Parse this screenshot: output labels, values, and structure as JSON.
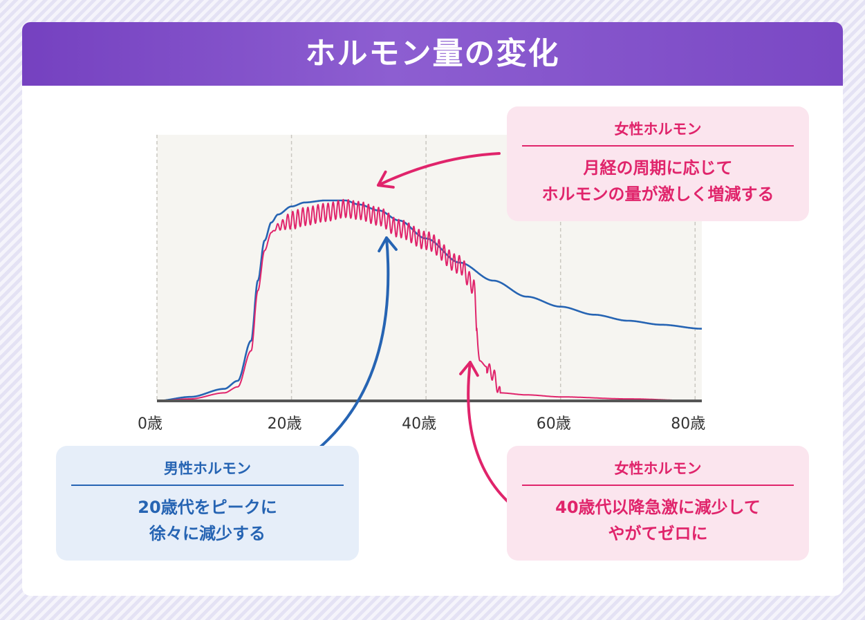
{
  "title": "ホルモン量の変化",
  "chart_data": {
    "type": "line",
    "title": "ホルモン量の変化",
    "xlabel": "",
    "ylabel": "",
    "xlim": [
      0,
      81
    ],
    "ylim": [
      0,
      1
    ],
    "x_ticks": [
      0,
      20,
      40,
      60,
      80
    ],
    "x_tick_labels": [
      "0歳",
      "20歳",
      "40歳",
      "60歳",
      "80歳"
    ],
    "grid": "vertical-dashed",
    "series": [
      {
        "name": "男性ホルモン",
        "color": "#2664b3",
        "x": [
          0,
          5,
          10,
          12,
          14,
          15,
          16,
          17,
          18,
          20,
          22,
          25,
          28,
          30,
          33,
          36,
          40,
          45,
          50,
          55,
          60,
          65,
          70,
          75,
          81
        ],
        "y": [
          0.0,
          0.02,
          0.06,
          0.1,
          0.3,
          0.6,
          0.8,
          0.89,
          0.93,
          0.97,
          0.99,
          1.0,
          1.0,
          0.98,
          0.95,
          0.9,
          0.81,
          0.69,
          0.6,
          0.52,
          0.47,
          0.43,
          0.4,
          0.38,
          0.36
        ]
      },
      {
        "name": "女性ホルモン",
        "color": "#e0246b",
        "oscillation": "monthly-cycle",
        "x": [
          0,
          5,
          10,
          12,
          14,
          15,
          16,
          17,
          18,
          20,
          22,
          25,
          28,
          30,
          33,
          36,
          40,
          45,
          47,
          48,
          49,
          50,
          51,
          55,
          60,
          70,
          81
        ],
        "y": [
          0.0,
          0.01,
          0.04,
          0.07,
          0.25,
          0.55,
          0.75,
          0.84,
          0.87,
          0.9,
          0.92,
          0.94,
          0.96,
          0.95,
          0.92,
          0.86,
          0.8,
          0.68,
          0.58,
          0.2,
          0.17,
          0.13,
          0.04,
          0.03,
          0.02,
          0.01,
          0.0
        ]
      }
    ]
  },
  "callouts": {
    "female_top": {
      "heading": "女性ホルモン",
      "lines": [
        "月経の周期に応じて",
        "ホルモンの量が激しく増減する"
      ]
    },
    "male": {
      "heading": "男性ホルモン",
      "lines": [
        "20歳代をピークに",
        "徐々に減少する"
      ]
    },
    "female_bottom": {
      "heading": "女性ホルモン",
      "lines": [
        "40歳代以降急激に減少して",
        "やがてゼロに"
      ]
    }
  },
  "colors": {
    "banner": "#7e4fc8",
    "female": "#e0246b",
    "male": "#2664b3",
    "female_box": "#fbe5ee",
    "male_box": "#e6eef9",
    "plot_bg": "#f6f5f1"
  }
}
